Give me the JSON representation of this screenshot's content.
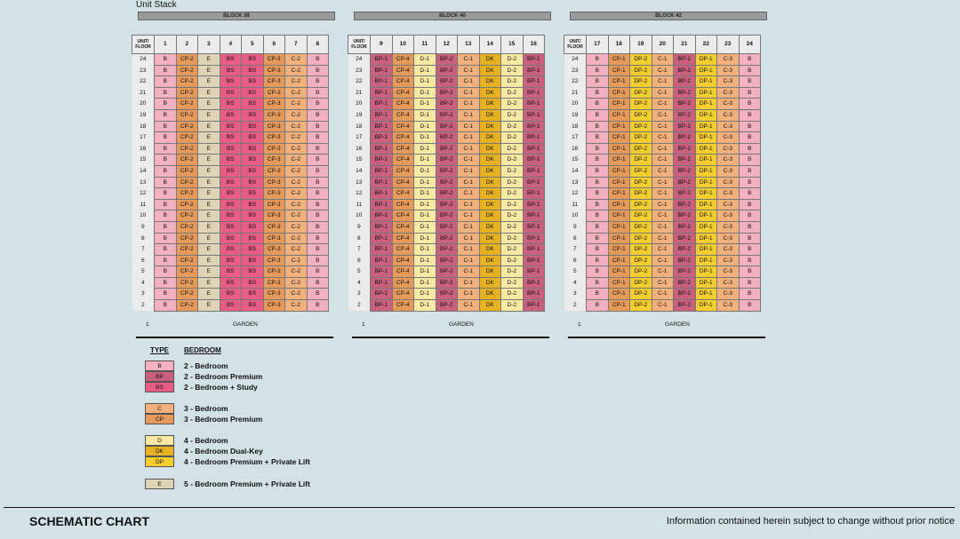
{
  "title": "Unit Stack",
  "blocks": [
    {
      "name": "BLOCK 38",
      "corner": [
        "UNIT/",
        "FLOOR"
      ],
      "units": [
        "1",
        "2",
        "3",
        "4",
        "5",
        "6",
        "7",
        "8"
      ],
      "types": [
        "B",
        "CP-2",
        "E",
        "BS",
        "BS",
        "CP-3",
        "C-2",
        "B"
      ],
      "floors": [
        "24",
        "23",
        "22",
        "21",
        "20",
        "19",
        "18",
        "17",
        "16",
        "15",
        "14",
        "13",
        "12",
        "11",
        "10",
        "9",
        "8",
        "7",
        "6",
        "5",
        "4",
        "3",
        "2"
      ],
      "ground_floor": "1",
      "ground_label": "GARDEN"
    },
    {
      "name": "BLOCK 40",
      "corner": [
        "UNIT/",
        "FLOOR"
      ],
      "units": [
        "9",
        "10",
        "11",
        "12",
        "13",
        "14",
        "15",
        "16"
      ],
      "types": [
        "BP-1",
        "CP-4",
        "D-1",
        "BP-2",
        "C-1",
        "DK",
        "D-2",
        "BP-1"
      ],
      "floors": [
        "24",
        "23",
        "22",
        "21",
        "20",
        "19",
        "18",
        "17",
        "16",
        "15",
        "14",
        "13",
        "12",
        "11",
        "10",
        "9",
        "8",
        "7",
        "6",
        "5",
        "4",
        "3",
        "2"
      ],
      "ground_floor": "1",
      "ground_label": "GARDEN"
    },
    {
      "name": "BLOCK 42",
      "corner": [
        "UNIT/",
        "FLOOR"
      ],
      "units": [
        "17",
        "18",
        "19",
        "20",
        "21",
        "22",
        "23",
        "24"
      ],
      "types": [
        "B",
        "CP-1",
        "DP-2",
        "C-1",
        "BP-2",
        "DP-1",
        "C-3",
        "B"
      ],
      "floors": [
        "24",
        "23",
        "22",
        "21",
        "20",
        "19",
        "18",
        "17",
        "16",
        "15",
        "14",
        "13",
        "12",
        "11",
        "10",
        "9",
        "8",
        "7",
        "6",
        "5",
        "4",
        "3",
        "2"
      ],
      "ground_floor": "1",
      "ground_label": "GARDEN"
    }
  ],
  "legend": {
    "type_header": "TYPE",
    "bedroom_header": "BEDROOM",
    "items": [
      {
        "code": "B",
        "label": "2 - Bedroom"
      },
      {
        "code": "BP",
        "label": "2 - Bedroom Premium"
      },
      {
        "code": "BS",
        "label": "2 - Bedroom + Study"
      },
      {
        "code": "C",
        "label": "3 - Bedroom"
      },
      {
        "code": "CP",
        "label": "3 - Bedroom Premium"
      },
      {
        "code": "D",
        "label": "4 - Bedroom"
      },
      {
        "code": "DK",
        "label": "4 - Bedroom Dual-Key"
      },
      {
        "code": "DP",
        "label": "4 - Bedroom Premium + Private Lift"
      },
      {
        "code": "E",
        "label": "5 - Bedroom Premium + Private Lift"
      }
    ]
  },
  "colors": {
    "B": "#f2b0c0",
    "BP": "#c8607e",
    "BS": "#e85d85",
    "C": "#f2b07c",
    "CP": "#e59a5c",
    "D": "#f7e9a4",
    "DK": "#e6b222",
    "DP": "#f4cd2e",
    "E": "#e0d4b6"
  },
  "footer": {
    "left": "SCHEMATIC CHART",
    "right": "Information contained herein subject to change without prior notice"
  }
}
